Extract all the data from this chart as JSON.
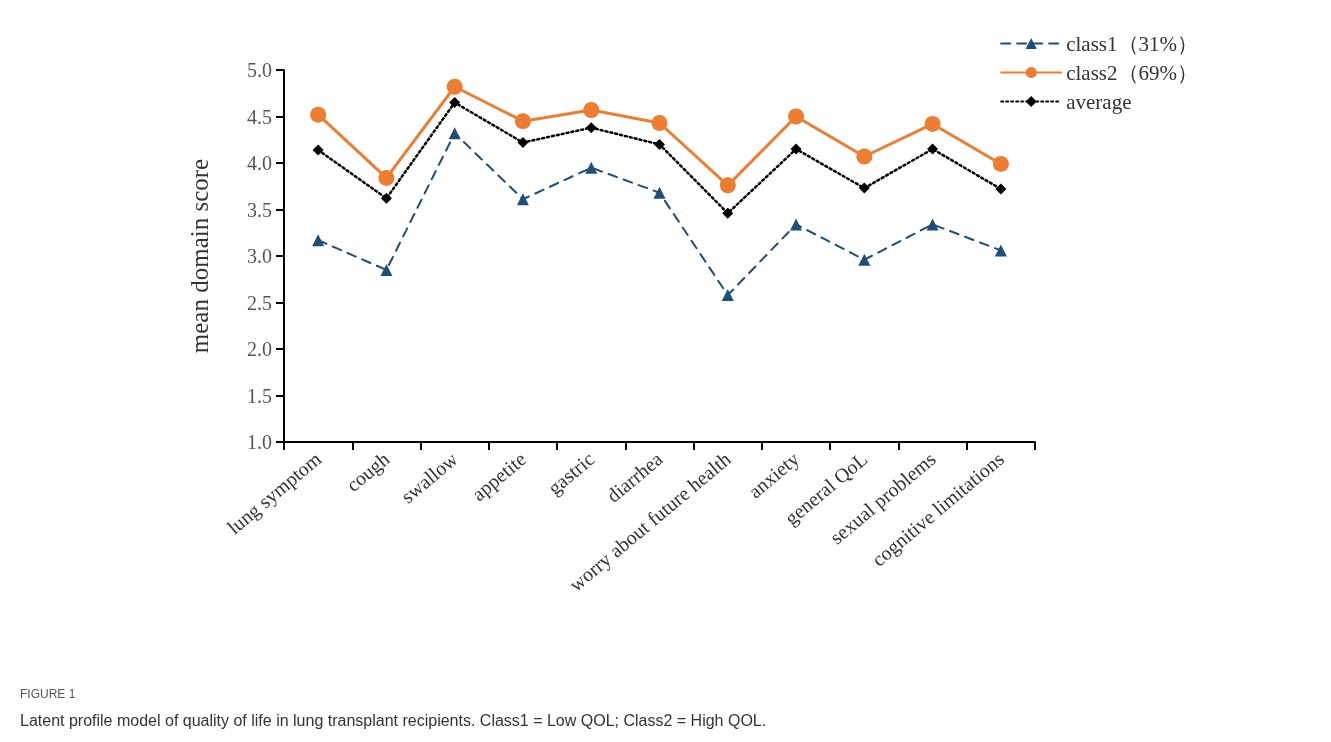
{
  "chart_data": {
    "type": "line",
    "ylabel": "mean domain score",
    "categories": [
      "lung symptom",
      "cough",
      "swallow",
      "appetite",
      "gastric",
      "diarrhea",
      "worry about future health",
      "anxiety",
      "general QoL",
      "sexual problems",
      "cognitive limitations"
    ],
    "series": [
      {
        "name": "class1（31%）",
        "color": "#1f4e79",
        "marker": "triangle",
        "line_style": "dashed",
        "values": [
          3.17,
          2.85,
          4.32,
          3.61,
          3.95,
          3.68,
          2.58,
          3.34,
          2.96,
          3.34,
          3.06
        ]
      },
      {
        "name": "class2（69%）",
        "color": "#ed7d31",
        "marker": "circle",
        "line_style": "solid",
        "values": [
          4.52,
          3.84,
          4.82,
          4.45,
          4.57,
          4.43,
          3.76,
          4.5,
          4.07,
          4.42,
          3.99
        ]
      },
      {
        "name": "average",
        "color": "#000000",
        "marker": "diamond",
        "line_style": "dotted",
        "values": [
          4.14,
          3.62,
          4.65,
          4.22,
          4.38,
          4.2,
          3.46,
          4.15,
          3.73,
          4.15,
          3.72
        ]
      }
    ],
    "ylim": [
      1.0,
      5.0
    ],
    "yticks": [
      {
        "value": 1,
        "label": "1.0"
      },
      {
        "value": 1.5,
        "label": "1.5"
      },
      {
        "value": 2,
        "label": "2.0"
      },
      {
        "value": 2.5,
        "label": "2.5"
      },
      {
        "value": 3,
        "label": "3.0"
      },
      {
        "value": 3.5,
        "label": "3.5"
      },
      {
        "value": 4,
        "label": "4.0"
      },
      {
        "value": 4.5,
        "label": "4.5"
      },
      {
        "value": 5,
        "label": "5.0"
      }
    ],
    "grid": false,
    "legend": "top right",
    "annotations": [
      "FIGURE 1",
      "Latent profile model of quality of life in lung transplant recipients. Class1 = Low QOL; Class2 = High QOL."
    ]
  }
}
